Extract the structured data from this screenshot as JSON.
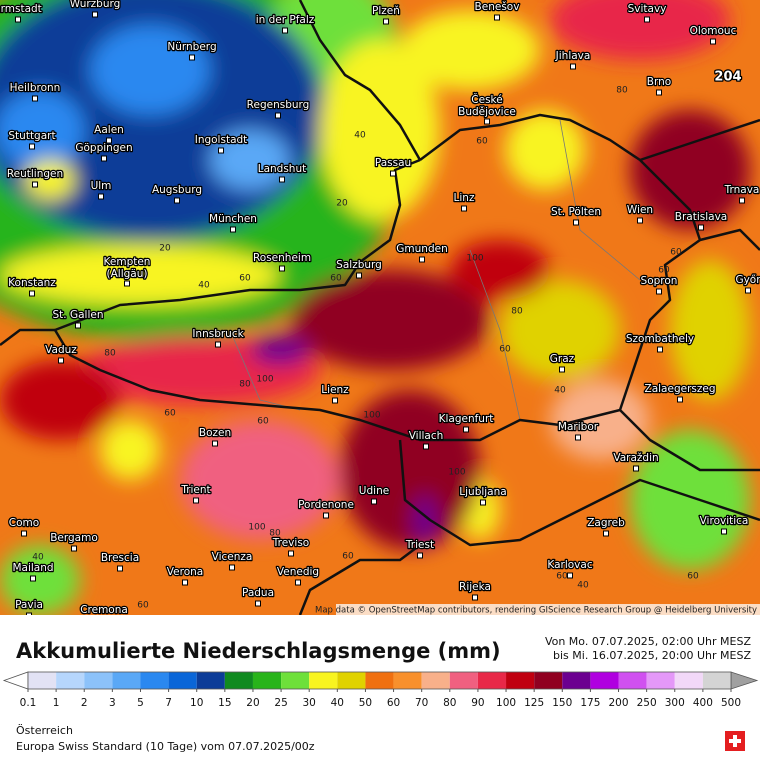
{
  "header": {
    "title": "Akkumulierte Niederschlagsmenge (mm)",
    "from": "Von Mo. 07.07.2025, 02:00 Uhr MESZ",
    "to": "bis Mi. 16.07.2025, 20:00 Uhr MESZ"
  },
  "map": {
    "cities": [
      "armstadt",
      "Würzburg",
      "in der Pfalz",
      "Plzeň",
      "Benešov",
      "Svitavy",
      "Olomouc",
      "Nürnberg",
      "Jihlava",
      "Heilbronn",
      "Regensburg",
      "Brno",
      "České Budějovice",
      "Aalen",
      "Ingolstadt",
      "Stuttgart",
      "Göppingen",
      "Passau",
      "Reutlingen",
      "Landshut",
      "Ulm",
      "Augsburg",
      "Linz",
      "St. Pölten",
      "Wien",
      "Bratislava",
      "Trnava",
      "München",
      "Gmunden",
      "Kempten (Allgäu)",
      "Rosenheim",
      "Salzburg",
      "Sopron",
      "Győr",
      "Konstanz",
      "St. Gallen",
      "Innsbruck",
      "Vaduz",
      "Szombathely",
      "Graz",
      "Lienz",
      "Zalaegerszeg",
      "Klagenfurt",
      "Villach",
      "Maribor",
      "Bozen",
      "Trient",
      "Udine",
      "Ljubljana",
      "Varaždin",
      "Pordenone",
      "Como",
      "Bergamo",
      "Zagreb",
      "Virovitica",
      "Treviso",
      "Triest",
      "Brescia",
      "Vicenza",
      "Mailand",
      "Karlovac",
      "Verona",
      "Venedig",
      "Padua",
      "Rijeka",
      "Pavia",
      "Cremona"
    ],
    "contour_labels": [
      20,
      40,
      60,
      80,
      20,
      40,
      60,
      60,
      100,
      80,
      60,
      80,
      100,
      80,
      60,
      60,
      100,
      40,
      100,
      80,
      100,
      60,
      60,
      40,
      60,
      60,
      40,
      60,
      60
    ],
    "max_label": 204,
    "attribution": "Map data © OpenStreetMap contributors, rendering GIScience Research Group @ Heidelberg University"
  },
  "legend": {
    "ticks": [
      0.1,
      1,
      2,
      3,
      5,
      7,
      10,
      15,
      20,
      25,
      30,
      40,
      50,
      60,
      70,
      80,
      90,
      100,
      125,
      150,
      175,
      200,
      250,
      300,
      400,
      500
    ],
    "colors": [
      "#e2e2f4",
      "#b6d6fc",
      "#8cc2fa",
      "#5aa8f6",
      "#2a88f0",
      "#0a66d8",
      "#0c3c98",
      "#108a20",
      "#28b41a",
      "#6ee03a",
      "#f8f420",
      "#e0d200",
      "#f07010",
      "#f8902c",
      "#f8b08a",
      "#f06080",
      "#e82848",
      "#c00010",
      "#900020",
      "#6c0090",
      "#b000e0",
      "#d050f0",
      "#e498f8",
      "#f2d8f8",
      "#d4d4d4"
    ],
    "under_color": "#ffffff",
    "over_color": "#a0a0a0"
  },
  "footer": {
    "region": "Österreich",
    "model": "Europa Swiss Standard (10 Tage) vom 07.07.2025/00z"
  }
}
